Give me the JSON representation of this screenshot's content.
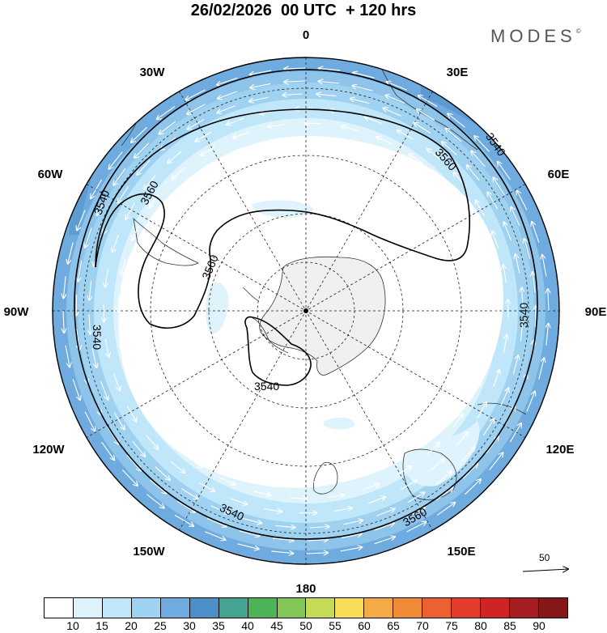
{
  "title": "26/02/2026  00 UTC  + 120 hrs",
  "brand": {
    "name": "MODES",
    "mark": "©"
  },
  "map": {
    "projection": "south-polar-stereographic",
    "longitude_labels": [
      "0",
      "30E",
      "60E",
      "90E",
      "120E",
      "150E",
      "180",
      "150W",
      "120W",
      "90W",
      "60W",
      "30W"
    ],
    "contour_labels": [
      "3560",
      "3540",
      "3560",
      "3540",
      "3560",
      "3540",
      "3540",
      "3540",
      "3540"
    ],
    "vector_key": {
      "label": "50"
    }
  },
  "legend": {
    "ticks": [
      "10",
      "15",
      "20",
      "25",
      "30",
      "35",
      "40",
      "45",
      "50",
      "55",
      "60",
      "65",
      "70",
      "75",
      "80",
      "85",
      "90"
    ],
    "colors": [
      "#ffffff",
      "#dff3fc",
      "#bfe6f9",
      "#9fd1f1",
      "#6fabde",
      "#4b8ec8",
      "#45a391",
      "#4cb356",
      "#84c557",
      "#c6db55",
      "#f7dd59",
      "#f4aa47",
      "#ef8a36",
      "#eb6130",
      "#e43c2a",
      "#cf2325",
      "#a51d20",
      "#861618"
    ]
  }
}
